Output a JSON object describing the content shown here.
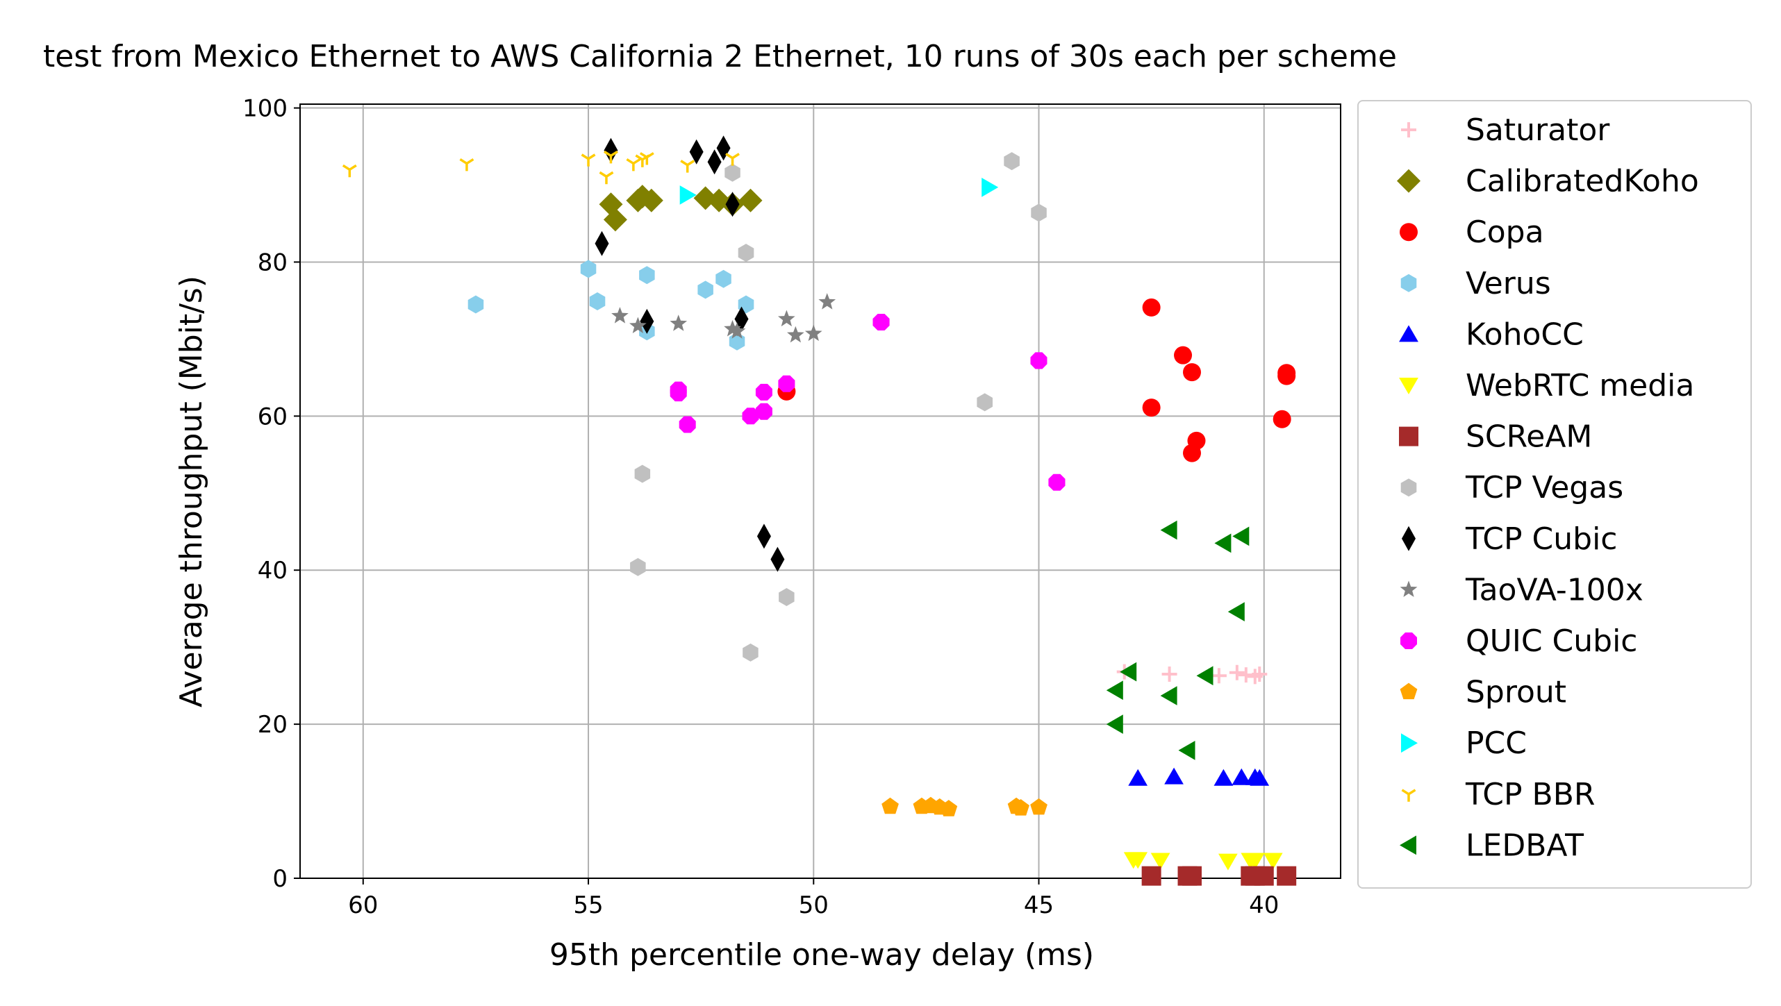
{
  "chart_data": {
    "type": "scatter",
    "title": "test from Mexico Ethernet to AWS California 2 Ethernet, 10 runs of 30s each per scheme",
    "xlabel": "95th percentile one-way delay (ms)",
    "ylabel": "Average throughput (Mbit/s)",
    "xlim": [
      61.4,
      38.3
    ],
    "ylim": [
      0,
      100.5
    ],
    "x_reversed": true,
    "grid": true,
    "legend_position": "outside-right",
    "x_ticks": [
      60,
      55,
      50,
      45,
      40
    ],
    "x_tick_labels": [
      "60",
      "55",
      "50",
      "45",
      "40"
    ],
    "y_ticks": [
      0,
      20,
      40,
      60,
      80,
      100
    ],
    "y_tick_labels": [
      "0",
      "20",
      "40",
      "60",
      "80",
      "100"
    ],
    "series": [
      {
        "name": "Saturator",
        "marker": "plus",
        "color": "#ffc0cb",
        "points": [
          [
            43.1,
            26.8
          ],
          [
            42.1,
            26.5
          ],
          [
            41.0,
            26.3
          ],
          [
            40.6,
            26.7
          ],
          [
            40.4,
            26.4
          ],
          [
            40.2,
            26.2
          ],
          [
            40.1,
            26.5
          ]
        ]
      },
      {
        "name": "CalibratedKoho",
        "marker": "diamond",
        "color": "#808000",
        "points": [
          [
            54.5,
            87.5
          ],
          [
            54.4,
            85.5
          ],
          [
            53.9,
            88.0
          ],
          [
            53.8,
            88.5
          ],
          [
            53.6,
            88.0
          ],
          [
            52.4,
            88.3
          ],
          [
            52.1,
            88.0
          ],
          [
            51.8,
            87.5
          ],
          [
            51.4,
            88.0
          ]
        ]
      },
      {
        "name": "Copa",
        "marker": "circle",
        "color": "#ff0000",
        "points": [
          [
            50.6,
            63.2
          ],
          [
            42.5,
            74.1
          ],
          [
            42.5,
            61.1
          ],
          [
            41.8,
            67.9
          ],
          [
            41.6,
            65.7
          ],
          [
            41.6,
            55.2
          ],
          [
            41.5,
            56.8
          ],
          [
            39.6,
            59.6
          ],
          [
            39.5,
            65.6
          ],
          [
            39.5,
            65.2
          ]
        ]
      },
      {
        "name": "Verus",
        "marker": "hexagon",
        "color": "#87ceeb",
        "points": [
          [
            57.5,
            74.5
          ],
          [
            55.0,
            79.1
          ],
          [
            54.8,
            74.9
          ],
          [
            53.7,
            78.3
          ],
          [
            53.7,
            71.0
          ],
          [
            52.4,
            76.4
          ],
          [
            52.0,
            77.8
          ],
          [
            51.7,
            69.7
          ],
          [
            51.5,
            74.5
          ]
        ]
      },
      {
        "name": "KohoCC",
        "marker": "triangle-up",
        "color": "#0000ff",
        "points": [
          [
            42.8,
            13.0
          ],
          [
            42.0,
            13.2
          ],
          [
            40.9,
            13.0
          ],
          [
            40.5,
            13.1
          ],
          [
            40.2,
            13.1
          ],
          [
            40.1,
            13.0
          ]
        ]
      },
      {
        "name": "WebRTC media",
        "marker": "triangle-down",
        "color": "#ffff00",
        "points": [
          [
            42.9,
            2.4
          ],
          [
            42.8,
            2.4
          ],
          [
            42.3,
            2.3
          ],
          [
            40.8,
            2.2
          ],
          [
            40.3,
            2.3
          ],
          [
            40.2,
            2.3
          ],
          [
            39.8,
            2.3
          ]
        ]
      },
      {
        "name": "SCReAM",
        "marker": "square",
        "color": "#a52a2a",
        "points": [
          [
            42.5,
            0.3
          ],
          [
            41.7,
            0.3
          ],
          [
            41.6,
            0.3
          ],
          [
            40.3,
            0.3
          ],
          [
            40.2,
            0.3
          ],
          [
            40.0,
            0.3
          ],
          [
            39.5,
            0.3
          ]
        ]
      },
      {
        "name": "TCP Vegas",
        "marker": "hexagon",
        "color": "#c0c0c0",
        "points": [
          [
            45.6,
            93.1
          ],
          [
            45.0,
            86.4
          ],
          [
            46.2,
            61.8
          ],
          [
            51.8,
            91.6
          ],
          [
            51.5,
            81.2
          ],
          [
            53.8,
            52.5
          ],
          [
            53.9,
            40.4
          ],
          [
            51.4,
            29.3
          ],
          [
            50.6,
            36.5
          ]
        ]
      },
      {
        "name": "TCP Cubic",
        "marker": "thin-diamond",
        "color": "#000000",
        "points": [
          [
            54.5,
            94.5
          ],
          [
            52.6,
            94.3
          ],
          [
            52.0,
            94.8
          ],
          [
            52.2,
            93.0
          ],
          [
            51.8,
            87.5
          ],
          [
            54.7,
            82.4
          ],
          [
            53.7,
            72.3
          ],
          [
            51.6,
            72.6
          ],
          [
            51.1,
            44.4
          ],
          [
            50.8,
            41.4
          ]
        ]
      },
      {
        "name": "TaoVA-100x",
        "marker": "star",
        "color": "#808080",
        "points": [
          [
            54.3,
            73.0
          ],
          [
            53.9,
            71.7
          ],
          [
            53.0,
            72.0
          ],
          [
            51.8,
            71.3
          ],
          [
            51.7,
            71.0
          ],
          [
            50.6,
            72.6
          ],
          [
            50.4,
            70.5
          ],
          [
            50.0,
            70.7
          ],
          [
            49.7,
            74.8
          ]
        ]
      },
      {
        "name": "QUIC Cubic",
        "marker": "octagon",
        "color": "#ff00ff",
        "points": [
          [
            48.5,
            72.2
          ],
          [
            53.0,
            63.4
          ],
          [
            53.0,
            63.0
          ],
          [
            52.8,
            58.9
          ],
          [
            51.4,
            60.0
          ],
          [
            51.1,
            60.6
          ],
          [
            51.1,
            63.1
          ],
          [
            50.6,
            64.2
          ],
          [
            45.0,
            67.2
          ],
          [
            44.6,
            51.4
          ]
        ]
      },
      {
        "name": "Sprout",
        "marker": "pentagon",
        "color": "#ffa500",
        "points": [
          [
            48.3,
            9.3
          ],
          [
            47.6,
            9.3
          ],
          [
            47.4,
            9.4
          ],
          [
            47.2,
            9.2
          ],
          [
            47.0,
            9.0
          ],
          [
            45.5,
            9.3
          ],
          [
            45.4,
            9.1
          ],
          [
            45.0,
            9.2
          ]
        ]
      },
      {
        "name": "PCC",
        "marker": "triangle-right",
        "color": "#00ffff",
        "points": [
          [
            52.8,
            88.7
          ],
          [
            46.1,
            89.7
          ]
        ]
      },
      {
        "name": "TCP BBR",
        "marker": "tri-down",
        "color": "#ffcc00",
        "points": [
          [
            60.3,
            92.0
          ],
          [
            57.7,
            92.8
          ],
          [
            55.0,
            93.4
          ],
          [
            54.6,
            91.1
          ],
          [
            54.5,
            93.8
          ],
          [
            54.0,
            92.8
          ],
          [
            53.8,
            93.3
          ],
          [
            53.7,
            93.6
          ],
          [
            52.8,
            92.6
          ],
          [
            51.8,
            93.5
          ]
        ]
      },
      {
        "name": "LEDBAT",
        "marker": "triangle-left",
        "color": "#008000",
        "points": [
          [
            42.1,
            45.2
          ],
          [
            40.9,
            43.5
          ],
          [
            40.5,
            44.4
          ],
          [
            40.6,
            34.6
          ],
          [
            43.0,
            26.8
          ],
          [
            41.3,
            26.3
          ],
          [
            43.3,
            24.4
          ],
          [
            42.1,
            23.7
          ],
          [
            43.3,
            20.0
          ],
          [
            41.7,
            16.6
          ]
        ]
      }
    ]
  }
}
